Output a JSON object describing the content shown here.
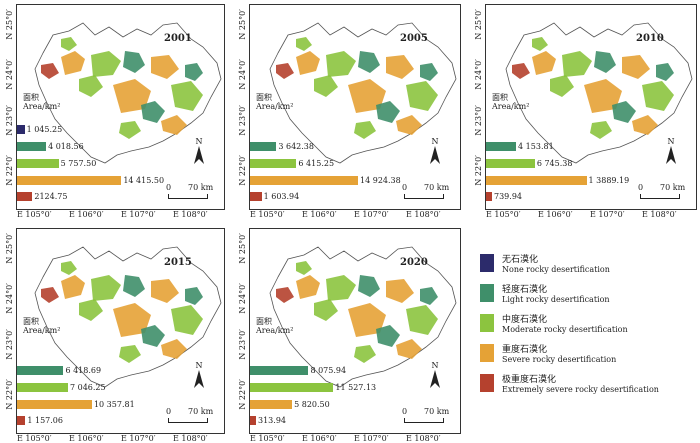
{
  "colors": {
    "none": "#2c2b6b",
    "light": "#3f8f6a",
    "moderate": "#8cc43f",
    "severe": "#e5a236",
    "extreme": "#b5412e"
  },
  "axis": {
    "lat_labels": [
      "N 22°0′",
      "N 23°0′",
      "N 24°0′",
      "N 25°0′"
    ],
    "lon_labels": [
      "E 105°0′",
      "E 106°0′",
      "E 107°0′",
      "E 108°0′"
    ]
  },
  "area_label": {
    "zh": "面积",
    "en": "Area/km²"
  },
  "north_label": "N",
  "scale_label": {
    "zero": "0",
    "distance": "70 km"
  },
  "panels": [
    {
      "year": "2001",
      "values": [
        "1 045.25",
        "4 018.56",
        "5 757.50",
        "14 415.50",
        "2124.75"
      ]
    },
    {
      "year": "2005",
      "values": [
        "",
        "3 642.38",
        "6 415.25",
        "14 924.38",
        "1 603.94"
      ]
    },
    {
      "year": "2010",
      "values": [
        "",
        "4 153.81",
        "6 745.38",
        "1 3889.19",
        "739.94"
      ]
    },
    {
      "year": "2015",
      "values": [
        "",
        "6 418.69",
        "7 046.25",
        "10 357.81",
        "1 157.06"
      ]
    },
    {
      "year": "2020",
      "values": [
        "",
        "8 075.94",
        "11 527.13",
        "5 820.50",
        "313.94"
      ]
    }
  ],
  "legend": [
    {
      "key": "none",
      "zh": "无石漠化",
      "en": "None rocky desertification"
    },
    {
      "key": "light",
      "zh": "轻度石漠化",
      "en": "Light rocky desertification"
    },
    {
      "key": "moderate",
      "zh": "中度石漠化",
      "en": "Moderate rocky desertification"
    },
    {
      "key": "severe",
      "zh": "重度石漠化",
      "en": "Severe rocky desertification"
    },
    {
      "key": "extreme",
      "zh": "极重度石漠化",
      "en": "Extremely severe rocky desertification"
    }
  ]
}
